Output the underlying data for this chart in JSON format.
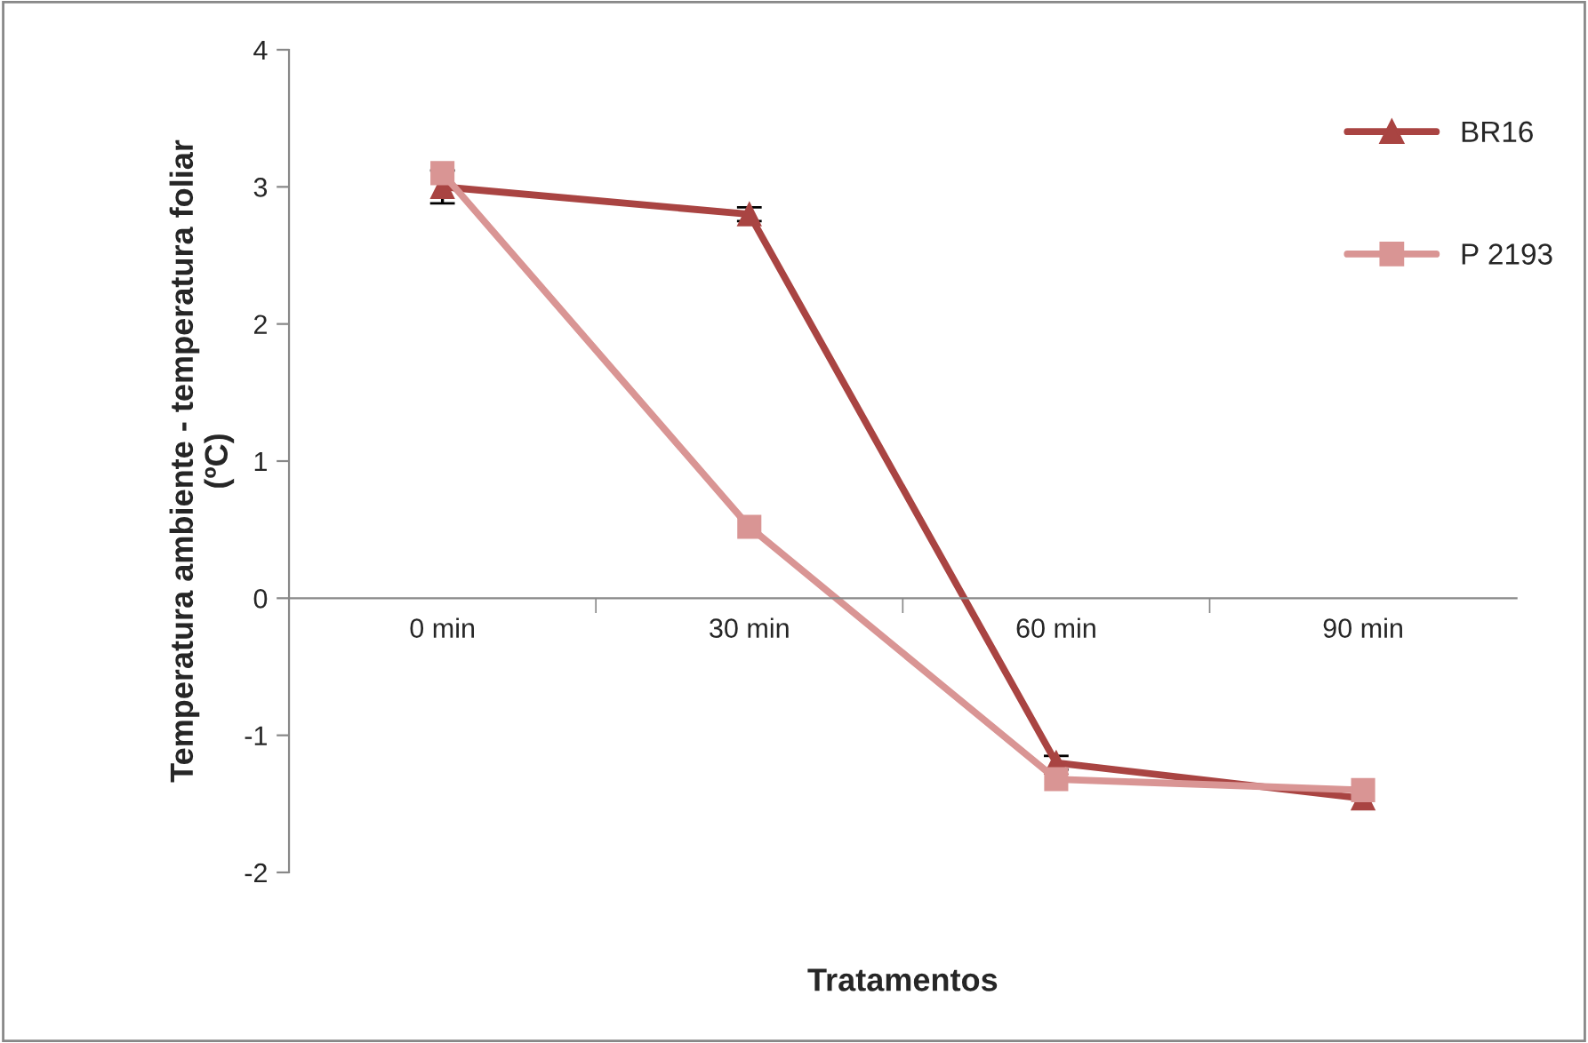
{
  "chart_data": {
    "type": "line",
    "xlabel": "Tratamentos",
    "ylabel": "Temperatura ambiente - temperatura foliar\n(ºC)",
    "categories": [
      "0 min",
      "30 min",
      "60 min",
      "90 min"
    ],
    "series": [
      {
        "name": "BR16",
        "color": "#a94442",
        "marker": "triangle",
        "values": [
          3.0,
          2.8,
          -1.2,
          -1.46
        ],
        "errors": [
          0.12,
          0.05,
          0.05,
          null
        ]
      },
      {
        "name": "P 2193",
        "color": "#d99594",
        "marker": "square",
        "values": [
          3.1,
          0.52,
          -1.32,
          -1.4
        ]
      }
    ],
    "ylim": [
      -2,
      4
    ],
    "yticks": [
      -2,
      -1,
      0,
      1,
      2,
      3,
      4
    ],
    "grid": false,
    "legend": "top right",
    "line_style": "solid"
  }
}
